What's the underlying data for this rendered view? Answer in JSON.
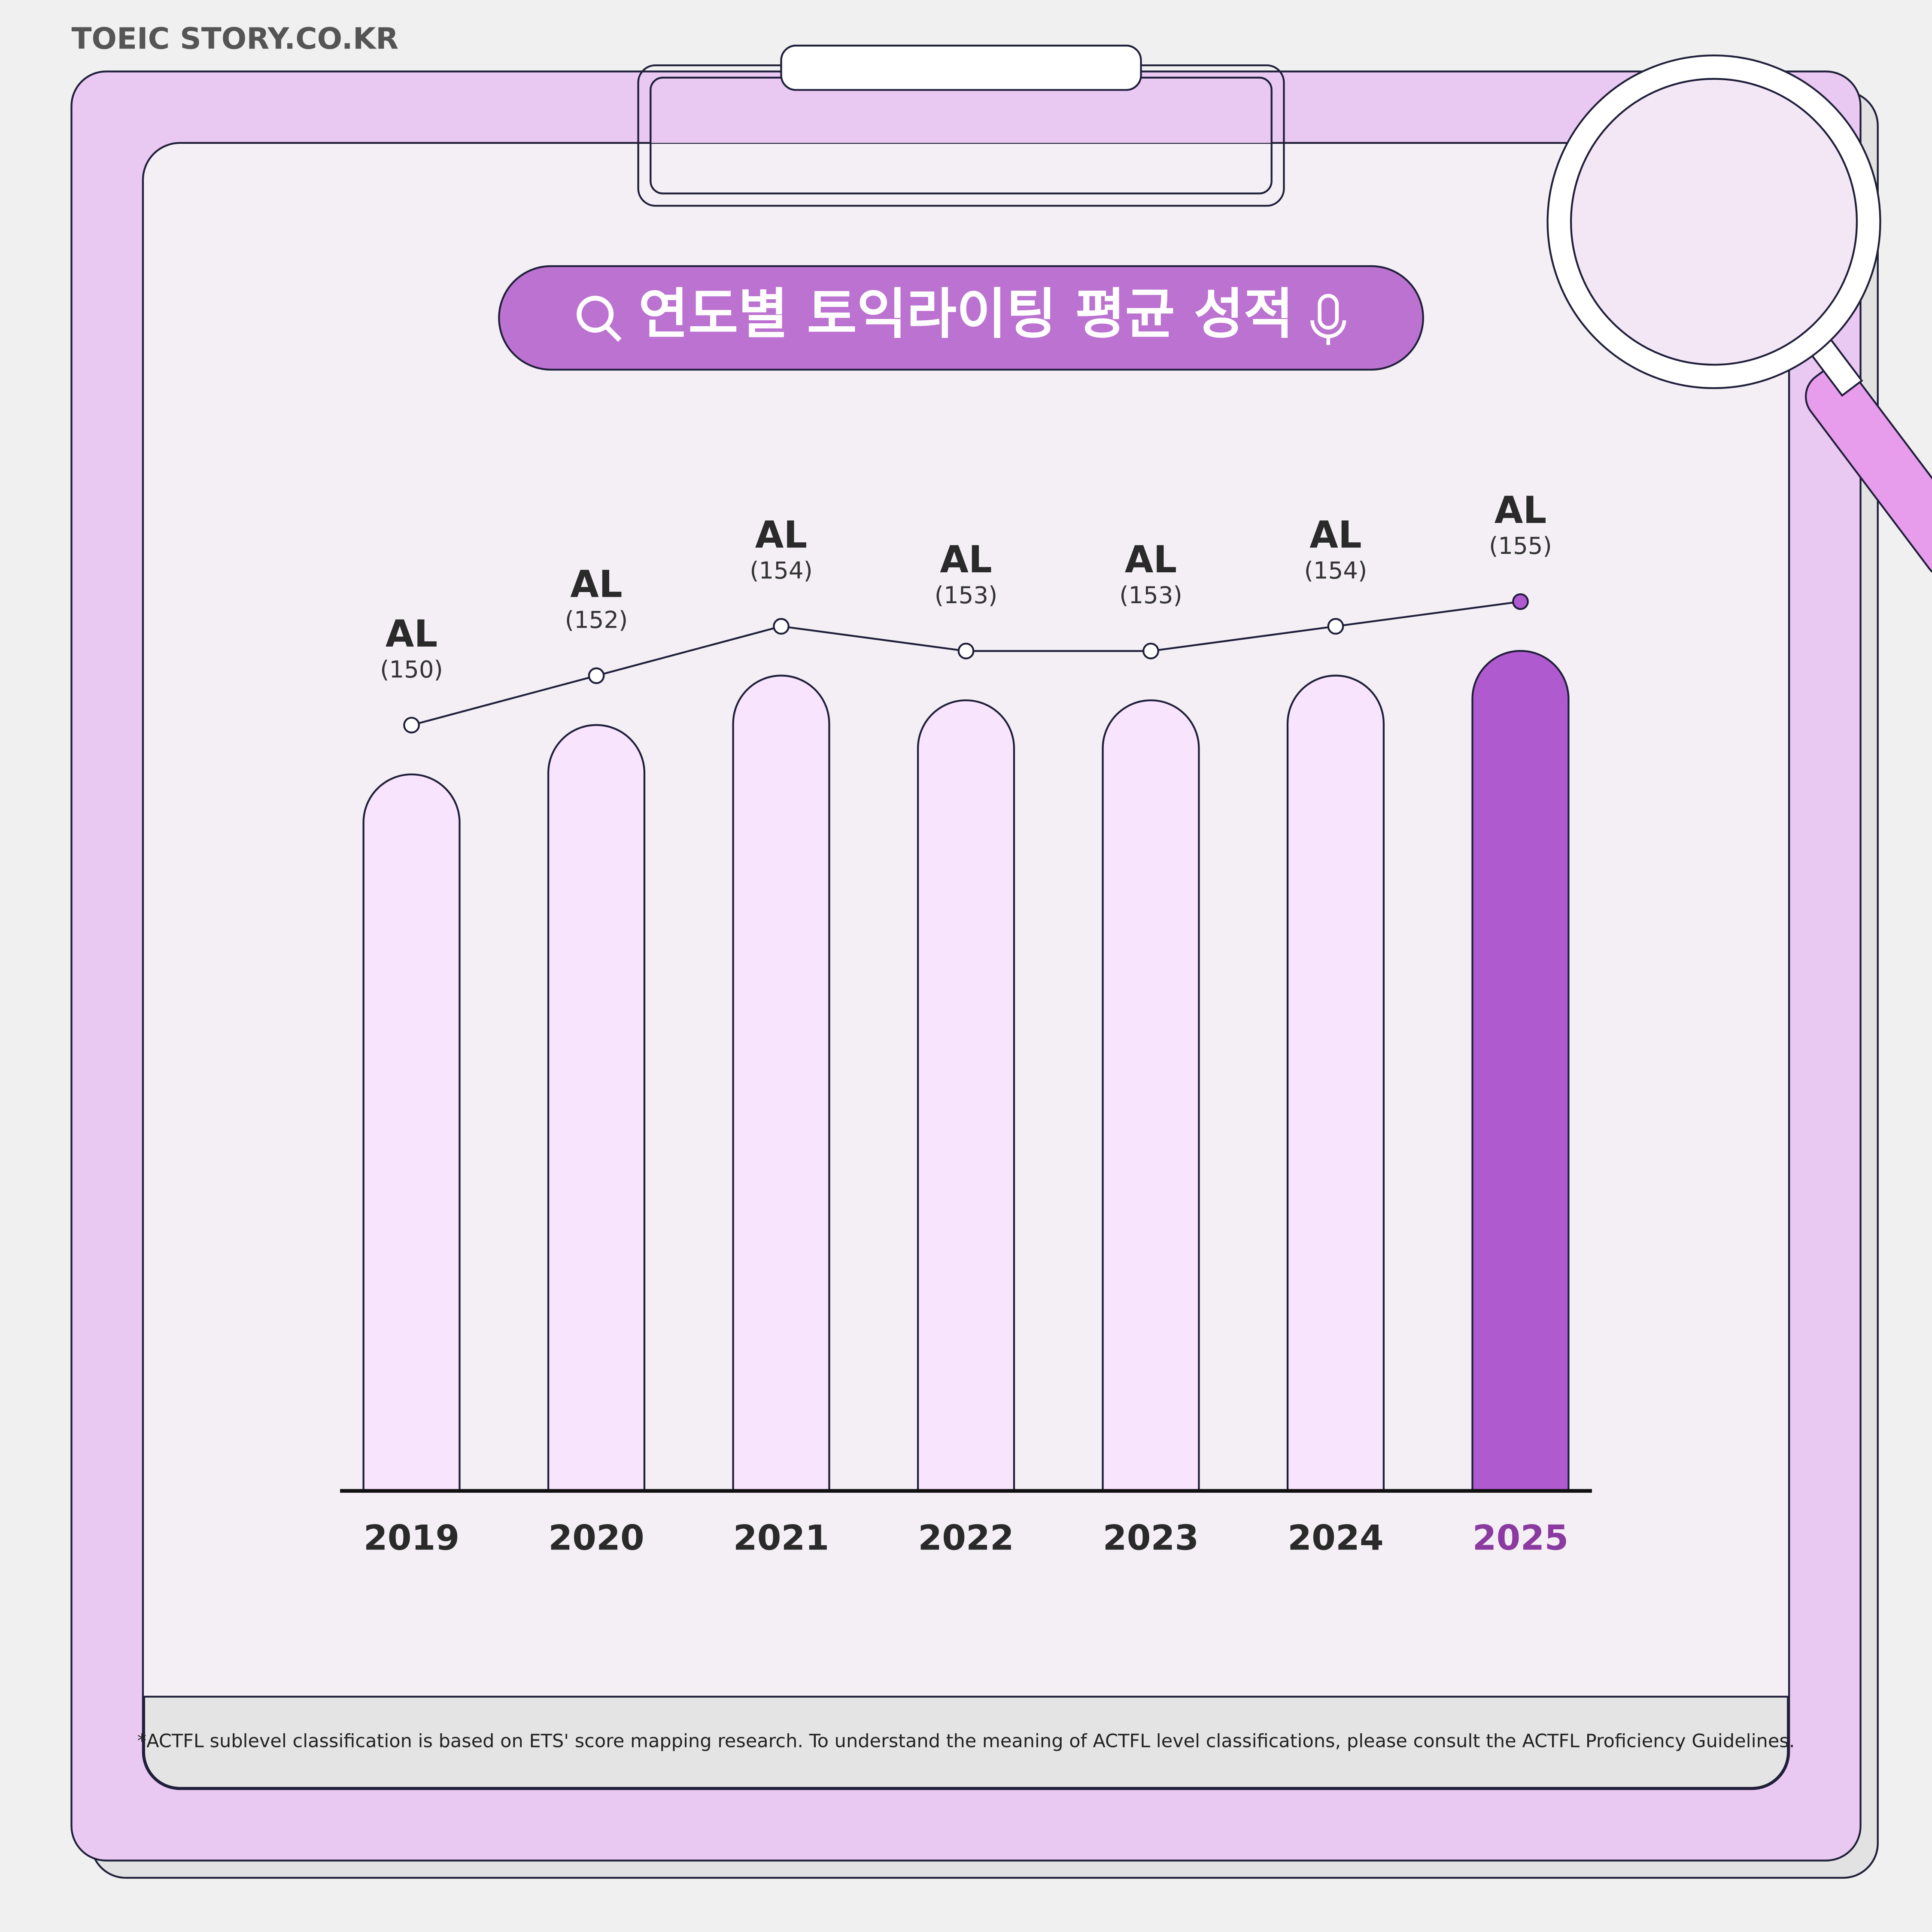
{
  "brand": "TOEIC STORY.CO.KR",
  "chart_data": {
    "type": "bar",
    "title": "연도별 토익라이팅 평균 성적",
    "categories": [
      "2019",
      "2020",
      "2021",
      "2022",
      "2023",
      "2024",
      "2025"
    ],
    "values": [
      150,
      152,
      154,
      153,
      153,
      154,
      155
    ],
    "value_labels": [
      "(150)",
      "(152)",
      "(154)",
      "(153)",
      "(153)",
      "(154)",
      "(155)"
    ],
    "levels": [
      "AL",
      "AL",
      "AL",
      "AL",
      "AL",
      "AL",
      "AL"
    ],
    "colors": [
      "#f8e4fc",
      "#f8e4fc",
      "#f8e4fc",
      "#f8e4fc",
      "#f8e4fc",
      "#f8e4fc",
      "#b05ad0"
    ],
    "label_colors": [
      "#2a2a2a",
      "#2a2a2a",
      "#2a2a2a",
      "#2a2a2a",
      "#2a2a2a",
      "#2a2a2a",
      "#8a3aa0"
    ],
    "line": true,
    "ylim": [
      121,
      160
    ],
    "footnote": "*ACTFL sublevel classification is based on ETS' score mapping research. To understand the meaning of ACTFL level classifications, please consult the ACTFL Proficiency Guidelines."
  }
}
